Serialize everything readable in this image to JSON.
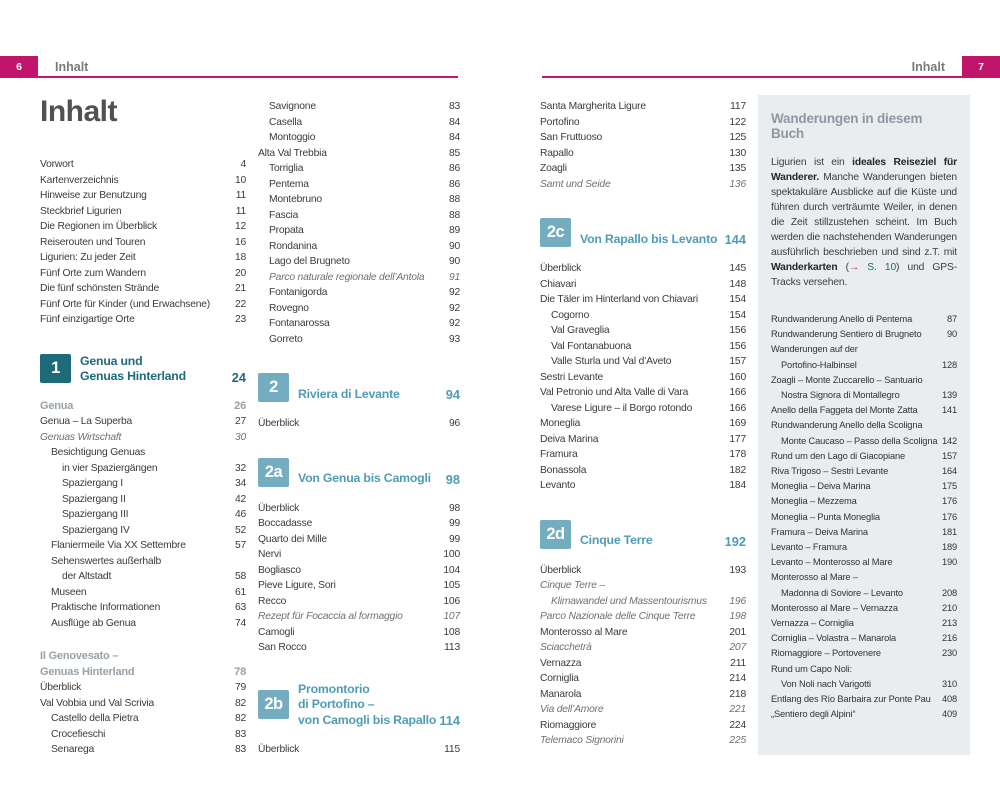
{
  "colors": {
    "accent_pink": "#c0156b",
    "teal_dark": "#1d6b79",
    "blue_light_badge": "#74acc0",
    "blue_light_text": "#4f9cb6",
    "sidebar_bg": "#e9edf0",
    "heading_gray": "#98a1a8"
  },
  "page_left": {
    "page_number": "6",
    "header_label": "Inhalt",
    "title": "Inhalt"
  },
  "page_right": {
    "page_number": "7",
    "header_label": "Inhalt"
  },
  "columns": [
    {
      "blocks": [
        {
          "type": "entries",
          "items": [
            {
              "t": "Vorwort",
              "p": "4"
            },
            {
              "t": "Kartenverzeichnis",
              "p": "10"
            },
            {
              "t": "Hinweise zur Benutzung",
              "p": "11"
            },
            {
              "t": "Steckbrief Ligurien",
              "p": "11"
            },
            {
              "t": "Die Regionen im Überblick",
              "p": "12"
            },
            {
              "t": "Reiserouten und Touren",
              "p": "16"
            },
            {
              "t": "Ligurien: Zu jeder Zeit",
              "p": "18"
            },
            {
              "t": "Fünf Orte zum Wandern",
              "p": "20"
            },
            {
              "t": "Die fünf schönsten Strände",
              "p": "21"
            },
            {
              "t": "Fünf Orte für Kinder (und Erwachsene)",
              "p": "22"
            },
            {
              "t": "Fünf einzigartige Orte",
              "p": "23"
            }
          ]
        },
        {
          "type": "section",
          "badge": "1",
          "variant": "dark",
          "lines": [
            "Genua und",
            "Genuas Hinterland"
          ],
          "page": "24"
        },
        {
          "type": "entries",
          "items": [
            {
              "t": "Genua",
              "p": "26",
              "s": "head"
            },
            {
              "t": "Genua – La Superba",
              "p": "27"
            },
            {
              "t": "Genuas Wirtschaft",
              "p": "30",
              "s": "it"
            },
            {
              "t": "Besichtigung Genuas",
              "p": "",
              "i": 1
            },
            {
              "t": "in vier Spaziergängen",
              "p": "32",
              "i": 2
            },
            {
              "t": "Spaziergang I",
              "p": "34",
              "i": 2
            },
            {
              "t": "Spaziergang II",
              "p": "42",
              "i": 2
            },
            {
              "t": "Spaziergang III",
              "p": "46",
              "i": 2
            },
            {
              "t": "Spaziergang IV",
              "p": "52",
              "i": 2
            },
            {
              "t": "Flaniermeile Via XX Settembre",
              "p": "57",
              "i": 1
            },
            {
              "t": "Sehenswertes außerhalb",
              "p": "",
              "i": 1
            },
            {
              "t": "der Altstadt",
              "p": "58",
              "i": 2
            },
            {
              "t": "Museen",
              "p": "61",
              "i": 1
            },
            {
              "t": "Praktische Informationen",
              "p": "63",
              "i": 1
            },
            {
              "t": "Ausflüge ab Genua",
              "p": "74",
              "i": 1
            }
          ]
        },
        {
          "type": "entries",
          "gap": true,
          "items": [
            {
              "t": "Il Genovesato –",
              "p": "",
              "s": "head"
            },
            {
              "t": "Genuas Hinterland",
              "p": "78",
              "s": "head"
            },
            {
              "t": "Überblick",
              "p": "79"
            },
            {
              "t": "Val Vobbia und Val Scrivia",
              "p": "82"
            },
            {
              "t": "Castello della Pietra",
              "p": "82",
              "i": 1
            },
            {
              "t": "Crocefieschi",
              "p": "83",
              "i": 1
            },
            {
              "t": "Senarega",
              "p": "83",
              "i": 1
            }
          ]
        }
      ]
    },
    {
      "blocks": [
        {
          "type": "entries",
          "items": [
            {
              "t": "Savignone",
              "p": "83",
              "i": 1
            },
            {
              "t": "Casella",
              "p": "84",
              "i": 1
            },
            {
              "t": "Montoggio",
              "p": "84",
              "i": 1
            },
            {
              "t": "Alta Val Trebbia",
              "p": "85"
            },
            {
              "t": "Torriglia",
              "p": "86",
              "i": 1
            },
            {
              "t": "Pentema",
              "p": "86",
              "i": 1
            },
            {
              "t": "Montebruno",
              "p": "88",
              "i": 1
            },
            {
              "t": "Fascia",
              "p": "88",
              "i": 1
            },
            {
              "t": "Propata",
              "p": "89",
              "i": 1
            },
            {
              "t": "Rondanina",
              "p": "90",
              "i": 1
            },
            {
              "t": "Lago del Brugneto",
              "p": "90",
              "i": 1
            },
            {
              "t": "Parco naturale regionale dell’Antola",
              "p": "91",
              "i": 1,
              "s": "it"
            },
            {
              "t": "Fontanigorda",
              "p": "92",
              "i": 1
            },
            {
              "t": "Rovegno",
              "p": "92",
              "i": 1
            },
            {
              "t": "Fontanarossa",
              "p": "92",
              "i": 1
            },
            {
              "t": "Gorreto",
              "p": "93",
              "i": 1
            }
          ]
        },
        {
          "type": "section",
          "badge": "2",
          "variant": "light",
          "lines": [
            "Riviera di Levante"
          ],
          "page": "94"
        },
        {
          "type": "entries",
          "items": [
            {
              "t": "Überblick",
              "p": "96"
            }
          ]
        },
        {
          "type": "section",
          "badge": "2a",
          "variant": "light",
          "lines": [
            "Von Genua bis Camogli"
          ],
          "page": "98"
        },
        {
          "type": "entries",
          "items": [
            {
              "t": "Überblick",
              "p": "98"
            },
            {
              "t": "Boccadasse",
              "p": "99"
            },
            {
              "t": "Quarto dei Mille",
              "p": "99"
            },
            {
              "t": "Nervi",
              "p": "100"
            },
            {
              "t": "Bogliasco",
              "p": "104"
            },
            {
              "t": "Pieve Ligure, Sori",
              "p": "105"
            },
            {
              "t": "Recco",
              "p": "106"
            },
            {
              "t": "Rezept für Focaccia al formaggio",
              "p": "107",
              "s": "it"
            },
            {
              "t": "Camogli",
              "p": "108"
            },
            {
              "t": "San Rocco",
              "p": "113"
            }
          ]
        },
        {
          "type": "section",
          "badge": "2b",
          "variant": "light",
          "lines": [
            "Promontorio",
            "di Portofino –",
            "von Camogli bis Rapallo"
          ],
          "page": "114"
        },
        {
          "type": "entries",
          "items": [
            {
              "t": "Überblick",
              "p": "115"
            }
          ]
        }
      ]
    },
    {
      "blocks": [
        {
          "type": "entries",
          "items": [
            {
              "t": "Santa Margherita Ligure",
              "p": "117"
            },
            {
              "t": "Portofino",
              "p": "122"
            },
            {
              "t": "San Fruttuoso",
              "p": "125"
            },
            {
              "t": "Rapallo",
              "p": "130"
            },
            {
              "t": "Zoagli",
              "p": "135"
            },
            {
              "t": "Samt und Seide",
              "p": "136",
              "s": "it"
            }
          ]
        },
        {
          "type": "section",
          "badge": "2c",
          "variant": "light",
          "lines": [
            "Von Rapallo bis Levanto"
          ],
          "page": "144"
        },
        {
          "type": "entries",
          "items": [
            {
              "t": "Überblick",
              "p": "145"
            },
            {
              "t": "Chiavari",
              "p": "148"
            },
            {
              "t": "Die Täler im Hinterland von Chiavari",
              "p": "154"
            },
            {
              "t": "Cogorno",
              "p": "154",
              "i": 1
            },
            {
              "t": "Val Graveglia",
              "p": "156",
              "i": 1
            },
            {
              "t": "Val Fontanabuona",
              "p": "156",
              "i": 1
            },
            {
              "t": "Valle Sturla und Val d’Aveto",
              "p": "157",
              "i": 1
            },
            {
              "t": "Sestri Levante",
              "p": "160"
            },
            {
              "t": "Val Petronio und Alta Valle di Vara",
              "p": "166"
            },
            {
              "t": "Varese Ligure – il Borgo rotondo",
              "p": "166",
              "i": 1
            },
            {
              "t": "Moneglia",
              "p": "169"
            },
            {
              "t": "Deiva Marina",
              "p": "177"
            },
            {
              "t": "Framura",
              "p": "178"
            },
            {
              "t": "Bonassola",
              "p": "182"
            },
            {
              "t": "Levanto",
              "p": "184"
            }
          ]
        },
        {
          "type": "section",
          "badge": "2d",
          "variant": "light",
          "lines": [
            "Cinque Terre"
          ],
          "page": "192"
        },
        {
          "type": "entries",
          "items": [
            {
              "t": "Überblick",
              "p": "193"
            },
            {
              "t": "Cinque Terre –",
              "p": "",
              "s": "it"
            },
            {
              "t": "Klimawandel und Massentourismus",
              "p": "196",
              "i": 1,
              "s": "it"
            },
            {
              "t": "Parco Nazionale delle Cinque Terre",
              "p": "198",
              "s": "it"
            },
            {
              "t": "Monterosso al Mare",
              "p": "201"
            },
            {
              "t": "Sciacchetrà",
              "p": "207",
              "s": "it"
            },
            {
              "t": "Vernazza",
              "p": "211"
            },
            {
              "t": "Corniglia",
              "p": "214"
            },
            {
              "t": "Manarola",
              "p": "218"
            },
            {
              "t": "Via dell’Amore",
              "p": "221",
              "s": "it"
            },
            {
              "t": "Riomaggiore",
              "p": "224"
            },
            {
              "t": "Telemaco Signorini",
              "p": "225",
              "s": "it"
            }
          ]
        }
      ]
    }
  ],
  "sidebar": {
    "title": "Wanderungen in diesem Buch",
    "paragraph": [
      {
        "t": "Ligurien ist ein "
      },
      {
        "t": "ideales Reiseziel für Wanderer.",
        "c": "b"
      },
      {
        "t": " Manche Wanderungen bieten spektakuläre Ausblicke auf die Küste und führen durch verträumte Weiler, in denen die Zeit stillzustehen scheint. Im Buch werden die nachstehenden Wanderungen ausführlich beschrieben und sind z.T. mit "
      },
      {
        "t": "Wanderkarten",
        "c": "b"
      },
      {
        "t": " ("
      },
      {
        "t": "→",
        "c": "arrow"
      },
      {
        "t": " S. 10",
        "c": "ref"
      },
      {
        "t": ") und GPS-Tracks versehen."
      }
    ],
    "items": [
      {
        "t": "Rundwanderung Anello di Pentema",
        "p": "87"
      },
      {
        "t": "Rundwanderung Sentiero di Brugneto",
        "p": "90"
      },
      {
        "t": "Wanderungen auf der",
        "p": ""
      },
      {
        "t": "Portofino-Halbinsel",
        "p": "128",
        "i": 1
      },
      {
        "t": "Zoagli – Monte Zuccarello – Santuario",
        "p": ""
      },
      {
        "t": "Nostra Signora di Montallegro",
        "p": "139",
        "i": 1
      },
      {
        "t": "Anello della Faggeta del Monte Zatta",
        "p": "141"
      },
      {
        "t": "Rundwanderung Anello della Scoligna",
        "p": ""
      },
      {
        "t": "Monte Caucaso – Passo della Scoligna",
        "p": "142",
        "i": 1
      },
      {
        "t": "Rund um den Lago di Giacopiane",
        "p": "157"
      },
      {
        "t": "Riva Trigoso – Sestri Levante",
        "p": "164"
      },
      {
        "t": "Moneglia – Deiva Marina",
        "p": "175"
      },
      {
        "t": "Moneglia – Mezzema",
        "p": "176"
      },
      {
        "t": "Moneglia – Punta Moneglia",
        "p": "176"
      },
      {
        "t": "Framura – Deiva Marina",
        "p": "181"
      },
      {
        "t": "Levanto – Framura",
        "p": "189"
      },
      {
        "t": "Levanto – Monterosso al Mare",
        "p": "190"
      },
      {
        "t": "Monterosso al Mare –",
        "p": ""
      },
      {
        "t": "Madonna di Soviore – Levanto",
        "p": "208",
        "i": 1
      },
      {
        "t": "Monterosso al Mare – Vernazza",
        "p": "210"
      },
      {
        "t": "Vernazza – Corniglia",
        "p": "213"
      },
      {
        "t": "Corniglia – Volastra – Manarola",
        "p": "216"
      },
      {
        "t": "Riomaggiore – Portovenere",
        "p": "230"
      },
      {
        "t": "Rund um Capo Noli:",
        "p": ""
      },
      {
        "t": "Von Noli nach Varigotti",
        "p": "310",
        "i": 1
      },
      {
        "t": "Entlang des Río Barbaira zur Ponte Pau",
        "p": "408"
      },
      {
        "t": "„Sentiero degli Alpini“",
        "p": "409"
      }
    ]
  }
}
